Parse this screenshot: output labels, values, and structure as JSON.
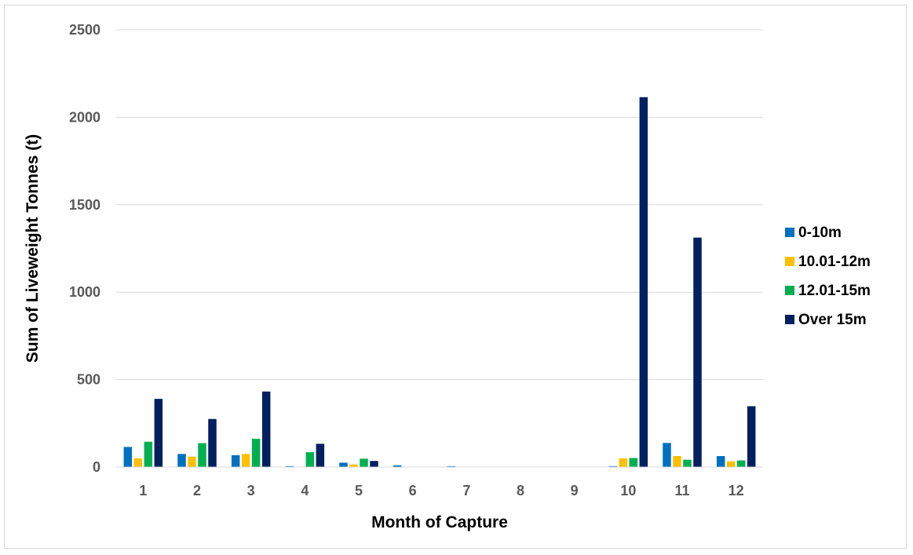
{
  "chart_data": {
    "type": "bar",
    "title": "",
    "xlabel": "Month of Capture",
    "ylabel": "Sum of Liveweight Tonnes (t)",
    "ylim": [
      0,
      2500
    ],
    "yticks": [
      "0",
      "500",
      "1000",
      "1500",
      "2000",
      "2500"
    ],
    "grid": true,
    "legend_position": "right",
    "categories": [
      "1",
      "2",
      "3",
      "4",
      "5",
      "6",
      "7",
      "8",
      "9",
      "10",
      "11",
      "12"
    ],
    "series": [
      {
        "name": "0-10m",
        "color": "#0070c0",
        "values": [
          115,
          75,
          68,
          5,
          25,
          10,
          5,
          0,
          0,
          5,
          138,
          63
        ]
      },
      {
        "name": "10.01-12m",
        "color": "#ffc000",
        "values": [
          50,
          60,
          75,
          0,
          15,
          0,
          0,
          0,
          0,
          50,
          63,
          33
        ]
      },
      {
        "name": "12.01-15m",
        "color": "#00b050",
        "values": [
          145,
          137,
          162,
          85,
          48,
          0,
          0,
          0,
          0,
          52,
          42,
          38
        ]
      },
      {
        "name": "Over 15m",
        "color": "#002060",
        "values": [
          390,
          275,
          432,
          133,
          35,
          0,
          0,
          0,
          0,
          2115,
          1312,
          348
        ]
      }
    ]
  }
}
